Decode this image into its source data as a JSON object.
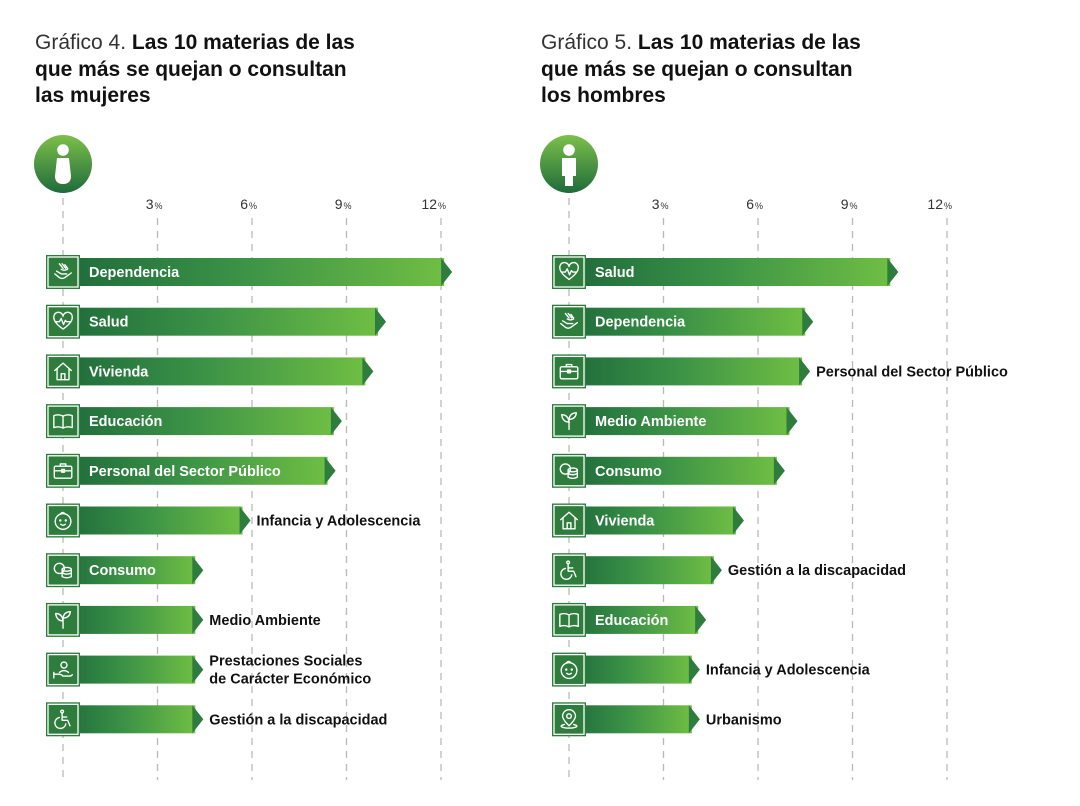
{
  "colors": {
    "bar_dark": "#1f6b3b",
    "bar_mid": "#3a9146",
    "bar_light": "#6fbe44",
    "tip": "#2f7d3e",
    "icon_box": "#2e7d3d",
    "badge_dark": "#1f6b3b",
    "badge_light": "#7cc04a",
    "grid": "#b9b9b9"
  },
  "chart_data": [
    {
      "type": "bar",
      "orientation": "horizontal",
      "title_prefix": "Gráfico 4.",
      "title": "Las 10 materias de las que más se quejan o consultan las mujeres",
      "title_lines": [
        "Las 10 materias de las",
        "que más se quejan o consultan",
        "las mujeres"
      ],
      "badge_icon": "woman-icon",
      "x_ticks": [
        3,
        6,
        9,
        12
      ],
      "tick_suffix": "%",
      "xlim": [
        0,
        12.5
      ],
      "unit": "%",
      "grid": true,
      "categories": [
        {
          "name": "Dependencia",
          "value": 12.1,
          "icon": "hands-care-icon",
          "label_position": "inside"
        },
        {
          "name": "Salud",
          "value": 10.0,
          "icon": "heartbeat-icon",
          "label_position": "inside"
        },
        {
          "name": "Vivienda",
          "value": 9.6,
          "icon": "house-icon",
          "label_position": "inside"
        },
        {
          "name": "Educación",
          "value": 8.6,
          "icon": "book-icon",
          "label_position": "inside"
        },
        {
          "name": "Personal del Sector Público",
          "value": 8.4,
          "icon": "briefcase-icon",
          "label_position": "inside"
        },
        {
          "name": "Infancia y Adolescencia",
          "value": 5.7,
          "icon": "baby-face-icon",
          "label_position": "outside"
        },
        {
          "name": "Consumo",
          "value": 4.2,
          "icon": "coins-icon",
          "label_position": "inside"
        },
        {
          "name": "Medio Ambiente",
          "value": 4.2,
          "icon": "plant-icon",
          "label_position": "outside"
        },
        {
          "name": "Prestaciones Sociales de Carácter Económico",
          "label_lines": [
            "Prestaciones Sociales",
            "de Carácter Económico"
          ],
          "value": 4.2,
          "icon": "hand-person-icon",
          "label_position": "outside"
        },
        {
          "name": "Gestión a la discapacidad",
          "value": 4.2,
          "icon": "wheelchair-icon",
          "label_position": "outside"
        }
      ]
    },
    {
      "type": "bar",
      "orientation": "horizontal",
      "title_prefix": "Gráfico 5.",
      "title": "Las 10 materias de las que más se quejan o consultan los hombres",
      "title_lines": [
        "Las 10 materias de las",
        "que más se quejan o consultan",
        "los hombres"
      ],
      "badge_icon": "man-icon",
      "x_ticks": [
        3,
        6,
        9,
        12
      ],
      "tick_suffix": "%",
      "xlim": [
        0,
        12.5
      ],
      "unit": "%",
      "grid": true,
      "categories": [
        {
          "name": "Salud",
          "value": 10.2,
          "icon": "heartbeat-icon",
          "label_position": "inside"
        },
        {
          "name": "Dependencia",
          "value": 7.5,
          "icon": "hands-care-icon",
          "label_position": "inside"
        },
        {
          "name": "Personal del Sector Público",
          "value": 7.4,
          "icon": "briefcase-icon",
          "label_position": "outside"
        },
        {
          "name": "Medio Ambiente",
          "value": 7.0,
          "icon": "plant-icon",
          "label_position": "inside"
        },
        {
          "name": "Consumo",
          "value": 6.6,
          "icon": "coins-icon",
          "label_position": "inside"
        },
        {
          "name": "Vivienda",
          "value": 5.3,
          "icon": "house-icon",
          "label_position": "inside"
        },
        {
          "name": "Gestión a la discapacidad",
          "value": 4.6,
          "icon": "wheelchair-icon",
          "label_position": "outside"
        },
        {
          "name": "Educación",
          "value": 4.1,
          "icon": "book-icon",
          "label_position": "inside"
        },
        {
          "name": "Infancia y Adolescencia",
          "value": 3.9,
          "icon": "baby-face-icon",
          "label_position": "outside"
        },
        {
          "name": "Urbanismo",
          "value": 3.9,
          "icon": "map-pin-icon",
          "label_position": "outside"
        }
      ]
    }
  ]
}
